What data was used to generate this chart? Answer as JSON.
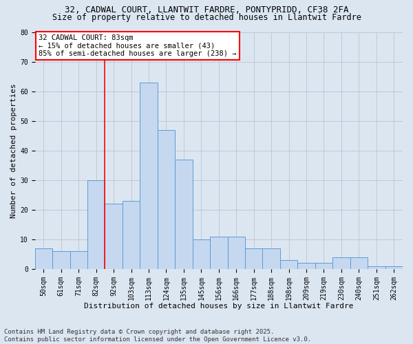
{
  "title_line1": "32, CADWAL COURT, LLANTWIT FARDRE, PONTYPRIDD, CF38 2FA",
  "title_line2": "Size of property relative to detached houses in Llantwit Fardre",
  "xlabel": "Distribution of detached houses by size in Llantwit Fardre",
  "ylabel": "Number of detached properties",
  "categories": [
    "50sqm",
    "61sqm",
    "71sqm",
    "82sqm",
    "92sqm",
    "103sqm",
    "113sqm",
    "124sqm",
    "135sqm",
    "145sqm",
    "156sqm",
    "166sqm",
    "177sqm",
    "188sqm",
    "198sqm",
    "209sqm",
    "219sqm",
    "230sqm",
    "240sqm",
    "251sqm",
    "262sqm"
  ],
  "values": [
    7,
    6,
    6,
    30,
    22,
    23,
    63,
    47,
    37,
    10,
    11,
    11,
    7,
    7,
    3,
    2,
    2,
    4,
    4,
    1,
    1
  ],
  "bar_color": "#c5d8f0",
  "bar_edge_color": "#5b9bd5",
  "grid_color": "#c0c8d8",
  "background_color": "#dce6f1",
  "annotation_text": "32 CADWAL COURT: 83sqm\n← 15% of detached houses are smaller (43)\n85% of semi-detached houses are larger (238) →",
  "redline_x": 3.5,
  "ylim": [
    0,
    80
  ],
  "yticks": [
    0,
    10,
    20,
    30,
    40,
    50,
    60,
    70,
    80
  ],
  "footer_text": "Contains HM Land Registry data © Crown copyright and database right 2025.\nContains public sector information licensed under the Open Government Licence v3.0.",
  "title_fontsize": 9,
  "subtitle_fontsize": 8.5,
  "axis_label_fontsize": 8,
  "tick_fontsize": 7,
  "annotation_fontsize": 7.5
}
